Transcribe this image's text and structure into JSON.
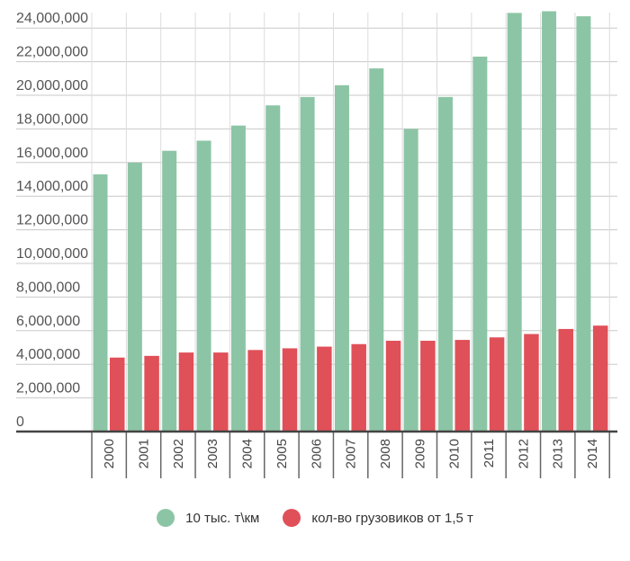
{
  "chart_data": {
    "type": "bar",
    "title": "",
    "xlabel": "",
    "ylabel": "",
    "ylim": [
      0,
      24000000
    ],
    "y_ticks": [
      "0",
      "2,000,000",
      "4,000,000",
      "6,000,000",
      "8,000,000",
      "10,000,000",
      "12,000,000",
      "14,000,000",
      "16,000,000",
      "18,000,000",
      "20,000,000",
      "22,000,000",
      "24,000,000"
    ],
    "y_tick_values": [
      0,
      2000000,
      4000000,
      6000000,
      8000000,
      10000000,
      12000000,
      14000000,
      16000000,
      18000000,
      20000000,
      22000000,
      24000000
    ],
    "categories": [
      "2000",
      "2001",
      "2002",
      "2003",
      "2004",
      "2005",
      "2006",
      "2007",
      "2008",
      "2009",
      "2010",
      "2011",
      "2012",
      "2013",
      "2014"
    ],
    "series": [
      {
        "name": "10 тыс. т\\км",
        "color": "#8cc5a5",
        "values": [
          15300000,
          16000000,
          16700000,
          17300000,
          18200000,
          19400000,
          19900000,
          20600000,
          21600000,
          18000000,
          19900000,
          22300000,
          24900000,
          25000000,
          24700000
        ]
      },
      {
        "name": "кол-во грузовиков от 1,5 т",
        "color": "#e05058",
        "values": [
          4400000,
          4500000,
          4700000,
          4700000,
          4850000,
          4950000,
          5050000,
          5200000,
          5400000,
          5400000,
          5450000,
          5600000,
          5800000,
          6100000,
          6300000
        ]
      }
    ],
    "grid": true,
    "legend_position": "bottom"
  }
}
